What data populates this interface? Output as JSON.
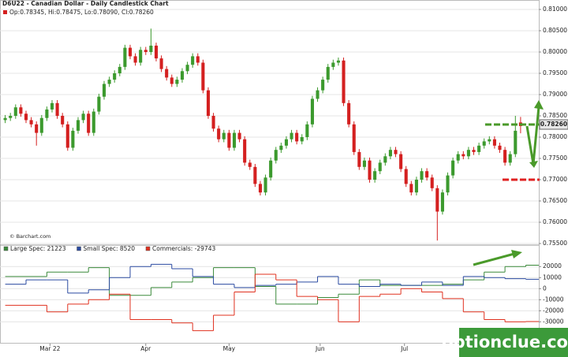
{
  "chart_data": [
    {
      "type": "candlestick",
      "title": "D6U22 - Canadian Dollar - Daily Candlestick Chart",
      "ohlc_label": "Op:0.78345, Hi:0.78475, Lo:0.78090, Cl:0.78260",
      "credit": "© Barchart.com",
      "last_price_label": "0.78260",
      "up_color": "#3c9a2e",
      "down_color": "#d42020",
      "xlim": [
        -1,
        102.5
      ],
      "ylim": [
        0.755,
        0.81
      ],
      "yticks": [
        {
          "value": 0.81,
          "label": "0.81000"
        },
        {
          "value": 0.805,
          "label": "0.80500"
        },
        {
          "value": 0.8,
          "label": "0.80000"
        },
        {
          "value": 0.795,
          "label": "0.79500"
        },
        {
          "value": 0.79,
          "label": "0.79000"
        },
        {
          "value": 0.785,
          "label": "0.78500"
        },
        {
          "value": 0.78,
          "label": "0.78000"
        },
        {
          "value": 0.775,
          "label": "0.77500"
        },
        {
          "value": 0.77,
          "label": "0.77000"
        },
        {
          "value": 0.765,
          "label": "0.76500"
        },
        {
          "value": 0.76,
          "label": "0.76000"
        },
        {
          "value": 0.755,
          "label": "0.75500"
        }
      ],
      "grid": true,
      "open": [
        0.784,
        0.7845,
        0.785,
        0.787,
        0.7855,
        0.784,
        0.783,
        0.781,
        0.7845,
        0.7865,
        0.788,
        0.785,
        0.783,
        0.7775,
        0.7815,
        0.784,
        0.7855,
        0.781,
        0.786,
        0.7895,
        0.7925,
        0.7935,
        0.795,
        0.7965,
        0.801,
        0.799,
        0.7975,
        0.8005,
        0.8,
        0.8015,
        0.7985,
        0.796,
        0.794,
        0.7925,
        0.7935,
        0.7955,
        0.797,
        0.799,
        0.7975,
        0.791,
        0.785,
        0.782,
        0.7795,
        0.781,
        0.7775,
        0.781,
        0.7795,
        0.774,
        0.773,
        0.769,
        0.767,
        0.7705,
        0.7745,
        0.777,
        0.778,
        0.7795,
        0.781,
        0.779,
        0.78,
        0.783,
        0.789,
        0.791,
        0.7935,
        0.7965,
        0.7975,
        0.798,
        0.788,
        0.783,
        0.7765,
        0.773,
        0.7745,
        0.77,
        0.772,
        0.774,
        0.7755,
        0.777,
        0.776,
        0.7725,
        0.769,
        0.767,
        0.77,
        0.772,
        0.7705,
        0.768,
        0.7625,
        0.767,
        0.771,
        0.7745,
        0.776,
        0.7755,
        0.777,
        0.7765,
        0.778,
        0.779,
        0.7795,
        0.778,
        0.777,
        0.774,
        0.776,
        0.78345
      ],
      "high": [
        0.7852,
        0.7857,
        0.7877,
        0.7877,
        0.7862,
        0.7847,
        0.7837,
        0.7852,
        0.7872,
        0.7887,
        0.7887,
        0.7857,
        0.7837,
        0.7822,
        0.7847,
        0.7862,
        0.7862,
        0.7867,
        0.7902,
        0.7932,
        0.7942,
        0.7957,
        0.7972,
        0.8017,
        0.8017,
        0.7997,
        0.8012,
        0.8012,
        0.8055,
        0.8022,
        0.7992,
        0.7967,
        0.7947,
        0.7942,
        0.7962,
        0.7977,
        0.7997,
        0.7997,
        0.7982,
        0.7917,
        0.7857,
        0.7827,
        0.7817,
        0.7817,
        0.7817,
        0.7817,
        0.7802,
        0.7747,
        0.7737,
        0.7697,
        0.7712,
        0.7752,
        0.7777,
        0.7787,
        0.7802,
        0.7817,
        0.7817,
        0.7807,
        0.7837,
        0.7897,
        0.7917,
        0.7942,
        0.7972,
        0.7982,
        0.7987,
        0.7987,
        0.7887,
        0.7837,
        0.7772,
        0.7752,
        0.7752,
        0.7727,
        0.7747,
        0.7762,
        0.7777,
        0.7777,
        0.7767,
        0.7732,
        0.7697,
        0.7707,
        0.7727,
        0.7727,
        0.7712,
        0.7687,
        0.7677,
        0.7717,
        0.7752,
        0.7767,
        0.7767,
        0.7777,
        0.7777,
        0.7787,
        0.7797,
        0.7802,
        0.7802,
        0.7787,
        0.7777,
        0.7767,
        0.785,
        0.78475
      ],
      "low": [
        0.7833,
        0.7838,
        0.7843,
        0.7848,
        0.7833,
        0.7823,
        0.778,
        0.7803,
        0.7838,
        0.7858,
        0.7843,
        0.7823,
        0.7768,
        0.7768,
        0.7808,
        0.7833,
        0.7803,
        0.7803,
        0.7853,
        0.7888,
        0.7918,
        0.7928,
        0.7943,
        0.7958,
        0.7983,
        0.7968,
        0.7968,
        0.7993,
        0.7993,
        0.7978,
        0.7953,
        0.7933,
        0.7918,
        0.7918,
        0.7928,
        0.7948,
        0.7963,
        0.7968,
        0.7903,
        0.7843,
        0.7813,
        0.7788,
        0.7788,
        0.7768,
        0.7768,
        0.7788,
        0.7733,
        0.7723,
        0.7683,
        0.7663,
        0.7663,
        0.7698,
        0.7738,
        0.7763,
        0.7773,
        0.7788,
        0.7783,
        0.7783,
        0.7793,
        0.7823,
        0.7883,
        0.7903,
        0.7928,
        0.7958,
        0.7968,
        0.7873,
        0.7823,
        0.7758,
        0.7723,
        0.7723,
        0.7693,
        0.7693,
        0.7713,
        0.7733,
        0.7748,
        0.7753,
        0.7718,
        0.7683,
        0.7663,
        0.7663,
        0.7693,
        0.7698,
        0.7673,
        0.7557,
        0.7618,
        0.7663,
        0.7703,
        0.7738,
        0.7748,
        0.7748,
        0.7758,
        0.7758,
        0.7773,
        0.7783,
        0.7773,
        0.7763,
        0.7733,
        0.7733,
        0.7753,
        0.7809
      ],
      "close": [
        0.7845,
        0.785,
        0.787,
        0.7855,
        0.784,
        0.783,
        0.781,
        0.7845,
        0.7865,
        0.788,
        0.785,
        0.783,
        0.7775,
        0.7815,
        0.784,
        0.7855,
        0.781,
        0.786,
        0.7895,
        0.7925,
        0.7935,
        0.795,
        0.7965,
        0.801,
        0.799,
        0.7975,
        0.8005,
        0.8,
        0.8015,
        0.7985,
        0.796,
        0.794,
        0.7925,
        0.7935,
        0.7955,
        0.797,
        0.799,
        0.7975,
        0.791,
        0.785,
        0.782,
        0.7795,
        0.781,
        0.7775,
        0.781,
        0.7795,
        0.774,
        0.773,
        0.769,
        0.767,
        0.7705,
        0.7745,
        0.777,
        0.778,
        0.7795,
        0.781,
        0.779,
        0.78,
        0.783,
        0.789,
        0.791,
        0.7935,
        0.7965,
        0.7975,
        0.798,
        0.788,
        0.783,
        0.7765,
        0.773,
        0.7745,
        0.77,
        0.772,
        0.774,
        0.7755,
        0.777,
        0.776,
        0.7725,
        0.769,
        0.767,
        0.77,
        0.772,
        0.7705,
        0.768,
        0.7625,
        0.767,
        0.771,
        0.7745,
        0.776,
        0.7755,
        0.777,
        0.7765,
        0.778,
        0.779,
        0.7795,
        0.778,
        0.777,
        0.774,
        0.776,
        0.7815,
        0.7826
      ]
    },
    {
      "type": "step",
      "xlim": [
        -1,
        102.5
      ],
      "xticks": [
        {
          "value": 8.6,
          "label": "Mar 22"
        },
        {
          "value": 27,
          "label": "Apr"
        },
        {
          "value": 43,
          "label": "May"
        },
        {
          "value": 60.5,
          "label": "Jun"
        },
        {
          "value": 76.7,
          "label": "Jul"
        }
      ],
      "ylim": [
        -49000,
        38000
      ],
      "yticks": [
        20000,
        10000,
        0,
        -10000,
        -20000,
        -30000
      ],
      "x": [
        0,
        4,
        8,
        12,
        16,
        20,
        24,
        28,
        32,
        36,
        40,
        44,
        48,
        52,
        56,
        60,
        64,
        68,
        72,
        76,
        80,
        84,
        88,
        92,
        96,
        100
      ],
      "series": [
        {
          "name": "Large Spec: 21223",
          "color": "#3a8a3a",
          "values": [
            11000,
            11000,
            15000,
            15000,
            19000,
            -6000,
            -6000,
            1000,
            6000,
            10000,
            19000,
            19000,
            2000,
            -14000,
            -14000,
            -8000,
            -5000,
            8000,
            3000,
            3000,
            3000,
            4000,
            8000,
            15000,
            20000,
            21223
          ]
        },
        {
          "name": "Small Spec: 8520",
          "color": "#2a4aa0",
          "values": [
            4000,
            8000,
            8000,
            -4000,
            -1000,
            10000,
            20000,
            22000,
            18000,
            11000,
            4000,
            1000,
            3000,
            4000,
            6000,
            11000,
            4000,
            2000,
            4000,
            3000,
            6000,
            3000,
            11000,
            10000,
            9000,
            8520
          ]
        },
        {
          "name": "Commercials: -29743",
          "color": "#e0301e",
          "values": [
            -15000,
            -15000,
            -21000,
            -14000,
            -10000,
            -5000,
            -28000,
            -28000,
            -31000,
            -38000,
            -24000,
            -3000,
            13000,
            8000,
            -7000,
            -10000,
            -30000,
            -7000,
            -5000,
            0,
            -3000,
            -9000,
            -21000,
            -28000,
            -30000,
            -29743
          ]
        }
      ]
    }
  ],
  "watermark": "optionclue.com"
}
